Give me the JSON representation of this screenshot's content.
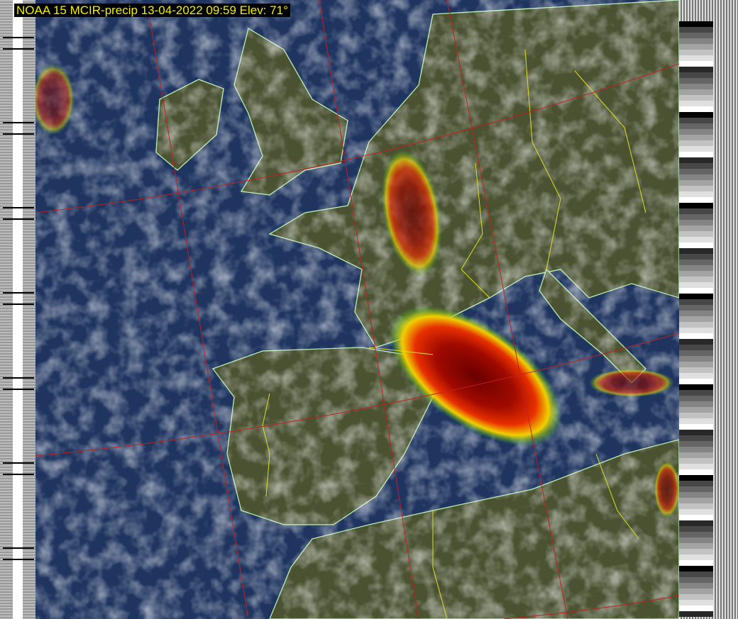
{
  "title": "NOAA 15 MCIR-precip 13-04-2022 09:59 Elev: 71°",
  "image": {
    "satellite": "NOAA 15",
    "product": "MCIR-precip",
    "date": "13-04-2022",
    "time": "09:59",
    "elevation": "71°"
  },
  "colors": {
    "ocean": "#1d2f52",
    "land": "#4a5230",
    "coastline": "#b8f0b0",
    "borders": "#e0e020",
    "graticule": "#c02020",
    "precip_heavy": "#8a0000",
    "precip_medium": "#e03000",
    "precip_light": "#f0e000",
    "precip_trace": "#30d030",
    "title_text": "#f4f000"
  }
}
